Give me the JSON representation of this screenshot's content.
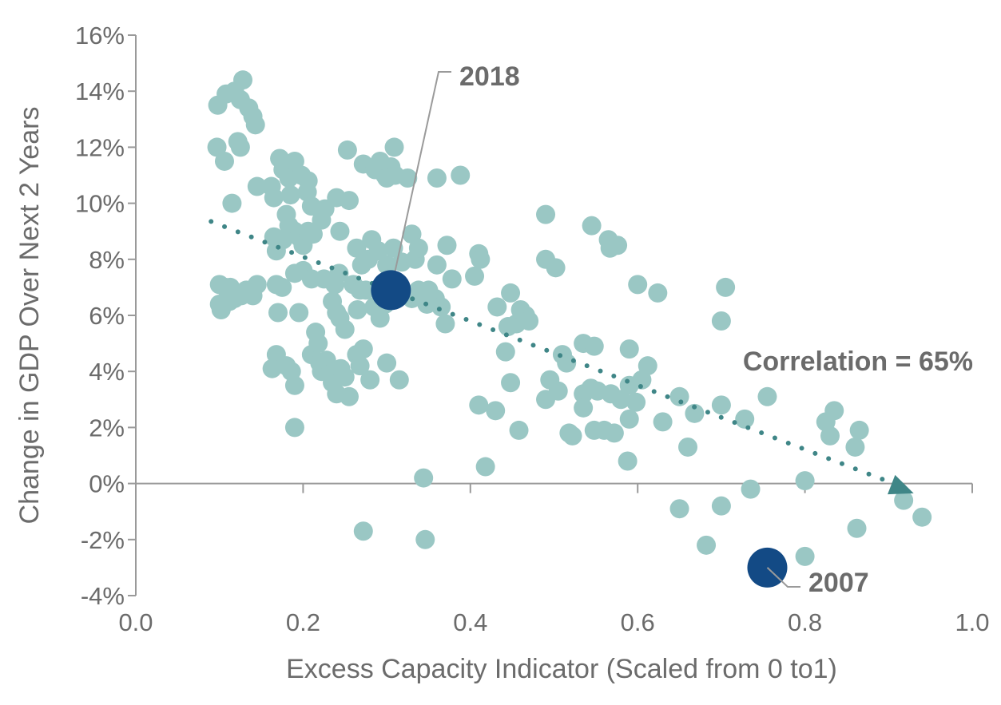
{
  "chart_data": {
    "type": "scatter",
    "xlabel": "Excess Capacity Indicator (Scaled from 0 to1)",
    "ylabel": "Change in GDP Over Next 2 Years",
    "xlim": [
      0,
      1
    ],
    "ylim": [
      -4,
      16
    ],
    "x_ticks": [
      "0.0",
      "0.2",
      "0.4",
      "0.6",
      "0.8",
      "1.0"
    ],
    "y_ticks": [
      "-4%",
      "-2%",
      "0%",
      "2%",
      "4%",
      "6%",
      "8%",
      "10%",
      "12%",
      "14%",
      "16%"
    ],
    "grid": false,
    "colors": {
      "points": "#9ac7c4",
      "highlight": "#134a85",
      "trend": "#3f8687",
      "axis": "#9a9a9a",
      "text": "#6b6b6b"
    },
    "trendline": {
      "x": [
        0.09,
        0.93
      ],
      "y": [
        9.35,
        -0.35
      ],
      "style": "dotted",
      "end_marker": "arrow"
    },
    "annotation": "Correlation = 65%",
    "highlights": [
      {
        "label": "2018",
        "x": 0.305,
        "y": 6.9
      },
      {
        "label": "2007",
        "x": 0.755,
        "y": -3.0
      }
    ],
    "points": [
      [
        0.098,
        13.5
      ],
      [
        0.108,
        13.9
      ],
      [
        0.118,
        14.0
      ],
      [
        0.128,
        14.4
      ],
      [
        0.125,
        13.7
      ],
      [
        0.135,
        13.4
      ],
      [
        0.14,
        13.1
      ],
      [
        0.143,
        12.8
      ],
      [
        0.097,
        12.0
      ],
      [
        0.106,
        11.5
      ],
      [
        0.122,
        12.2
      ],
      [
        0.125,
        12.0
      ],
      [
        0.115,
        10.0
      ],
      [
        0.145,
        10.6
      ],
      [
        0.1,
        7.1
      ],
      [
        0.107,
        7.0
      ],
      [
        0.113,
        7.0
      ],
      [
        0.12,
        6.8
      ],
      [
        0.126,
        6.7
      ],
      [
        0.132,
        6.9
      ],
      [
        0.14,
        6.7
      ],
      [
        0.145,
        7.1
      ],
      [
        0.1,
        6.4
      ],
      [
        0.102,
        6.2
      ],
      [
        0.112,
        6.5
      ],
      [
        0.118,
        6.6
      ],
      [
        0.162,
        10.6
      ],
      [
        0.165,
        10.2
      ],
      [
        0.172,
        11.6
      ],
      [
        0.176,
        11.2
      ],
      [
        0.183,
        10.9
      ],
      [
        0.19,
        11.5
      ],
      [
        0.198,
        11.0
      ],
      [
        0.185,
        10.3
      ],
      [
        0.206,
        10.8
      ],
      [
        0.205,
        10.4
      ],
      [
        0.21,
        9.9
      ],
      [
        0.165,
        8.8
      ],
      [
        0.168,
        8.3
      ],
      [
        0.176,
        8.7
      ],
      [
        0.18,
        9.6
      ],
      [
        0.183,
        9.2
      ],
      [
        0.19,
        9.0
      ],
      [
        0.195,
        8.8
      ],
      [
        0.2,
        8.5
      ],
      [
        0.206,
        9.0
      ],
      [
        0.212,
        8.9
      ],
      [
        0.222,
        9.4
      ],
      [
        0.226,
        9.8
      ],
      [
        0.24,
        10.2
      ],
      [
        0.244,
        9.0
      ],
      [
        0.255,
        10.1
      ],
      [
        0.168,
        7.1
      ],
      [
        0.175,
        7.0
      ],
      [
        0.19,
        7.5
      ],
      [
        0.2,
        7.6
      ],
      [
        0.21,
        7.3
      ],
      [
        0.225,
        7.3
      ],
      [
        0.238,
        7.1
      ],
      [
        0.243,
        7.5
      ],
      [
        0.17,
        6.1
      ],
      [
        0.195,
        6.1
      ],
      [
        0.235,
        6.5
      ],
      [
        0.24,
        6.1
      ],
      [
        0.244,
        5.9
      ],
      [
        0.25,
        5.5
      ],
      [
        0.265,
        6.2
      ],
      [
        0.168,
        4.6
      ],
      [
        0.163,
        4.1
      ],
      [
        0.18,
        4.2
      ],
      [
        0.186,
        4.0
      ],
      [
        0.19,
        3.5
      ],
      [
        0.21,
        4.6
      ],
      [
        0.215,
        5.4
      ],
      [
        0.218,
        5.0
      ],
      [
        0.22,
        4.3
      ],
      [
        0.222,
        4.0
      ],
      [
        0.228,
        4.4
      ],
      [
        0.232,
        3.9
      ],
      [
        0.235,
        3.6
      ],
      [
        0.24,
        3.2
      ],
      [
        0.245,
        4.1
      ],
      [
        0.25,
        3.8
      ],
      [
        0.255,
        3.1
      ],
      [
        0.264,
        4.6
      ],
      [
        0.268,
        4.2
      ],
      [
        0.272,
        4.8
      ],
      [
        0.28,
        3.7
      ],
      [
        0.19,
        2.0
      ],
      [
        0.253,
        11.9
      ],
      [
        0.272,
        11.4
      ],
      [
        0.286,
        11.2
      ],
      [
        0.292,
        11.5
      ],
      [
        0.298,
        11.0
      ],
      [
        0.305,
        11.3
      ],
      [
        0.309,
        12.0
      ],
      [
        0.3,
        10.9
      ],
      [
        0.31,
        11.0
      ],
      [
        0.325,
        10.9
      ],
      [
        0.36,
        10.9
      ],
      [
        0.388,
        11.0
      ],
      [
        0.264,
        8.4
      ],
      [
        0.27,
        7.8
      ],
      [
        0.278,
        8.0
      ],
      [
        0.282,
        8.7
      ],
      [
        0.29,
        8.3
      ],
      [
        0.3,
        7.8
      ],
      [
        0.308,
        8.4
      ],
      [
        0.318,
        7.9
      ],
      [
        0.33,
        8.9
      ],
      [
        0.334,
        8.0
      ],
      [
        0.338,
        8.4
      ],
      [
        0.35,
        6.9
      ],
      [
        0.338,
        6.9
      ],
      [
        0.33,
        6.6
      ],
      [
        0.26,
        7.1
      ],
      [
        0.268,
        6.9
      ],
      [
        0.275,
        6.9
      ],
      [
        0.285,
        6.3
      ],
      [
        0.292,
        5.9
      ],
      [
        0.298,
        6.4
      ],
      [
        0.3,
        4.3
      ],
      [
        0.315,
        3.7
      ],
      [
        0.36,
        7.8
      ],
      [
        0.372,
        8.5
      ],
      [
        0.378,
        7.3
      ],
      [
        0.348,
        6.4
      ],
      [
        0.358,
        6.6
      ],
      [
        0.365,
        6.3
      ],
      [
        0.37,
        5.7
      ],
      [
        0.405,
        7.4
      ],
      [
        0.41,
        8.2
      ],
      [
        0.412,
        8.0
      ],
      [
        0.432,
        6.3
      ],
      [
        0.448,
        6.8
      ],
      [
        0.455,
        5.7
      ],
      [
        0.445,
        5.6
      ],
      [
        0.46,
        6.2
      ],
      [
        0.466,
        6.0
      ],
      [
        0.47,
        5.8
      ],
      [
        0.442,
        4.7
      ],
      [
        0.448,
        3.6
      ],
      [
        0.41,
        2.8
      ],
      [
        0.43,
        2.6
      ],
      [
        0.458,
        1.9
      ],
      [
        0.418,
        0.6
      ],
      [
        0.344,
        0.2
      ],
      [
        0.272,
        -1.7
      ],
      [
        0.346,
        -2.0
      ],
      [
        0.49,
        9.6
      ],
      [
        0.49,
        8.0
      ],
      [
        0.502,
        7.7
      ],
      [
        0.495,
        3.7
      ],
      [
        0.49,
        3.0
      ],
      [
        0.505,
        3.3
      ],
      [
        0.51,
        4.6
      ],
      [
        0.515,
        4.3
      ],
      [
        0.518,
        1.8
      ],
      [
        0.522,
        1.7
      ],
      [
        0.535,
        5.0
      ],
      [
        0.548,
        4.9
      ],
      [
        0.535,
        3.2
      ],
      [
        0.544,
        3.4
      ],
      [
        0.552,
        3.3
      ],
      [
        0.535,
        2.7
      ],
      [
        0.548,
        1.9
      ],
      [
        0.56,
        1.9
      ],
      [
        0.568,
        3.2
      ],
      [
        0.572,
        1.8
      ],
      [
        0.545,
        9.2
      ],
      [
        0.565,
        8.7
      ],
      [
        0.567,
        8.4
      ],
      [
        0.576,
        8.5
      ],
      [
        0.6,
        7.1
      ],
      [
        0.624,
        6.8
      ],
      [
        0.705,
        7.0
      ],
      [
        0.59,
        4.8
      ],
      [
        0.59,
        3.5
      ],
      [
        0.58,
        3.0
      ],
      [
        0.598,
        2.9
      ],
      [
        0.605,
        3.7
      ],
      [
        0.612,
        4.2
      ],
      [
        0.59,
        2.3
      ],
      [
        0.588,
        0.8
      ],
      [
        0.63,
        2.2
      ],
      [
        0.65,
        3.1
      ],
      [
        0.66,
        1.3
      ],
      [
        0.668,
        2.5
      ],
      [
        0.7,
        2.8
      ],
      [
        0.7,
        5.8
      ],
      [
        0.728,
        2.3
      ],
      [
        0.755,
        3.1
      ],
      [
        0.65,
        -0.9
      ],
      [
        0.682,
        -2.2
      ],
      [
        0.7,
        -0.8
      ],
      [
        0.735,
        -0.2
      ],
      [
        0.8,
        0.1
      ],
      [
        0.8,
        -2.6
      ],
      [
        0.825,
        2.2
      ],
      [
        0.83,
        1.7
      ],
      [
        0.835,
        2.6
      ],
      [
        0.86,
        1.3
      ],
      [
        0.865,
        1.9
      ],
      [
        0.862,
        -1.6
      ],
      [
        0.918,
        -0.6
      ],
      [
        0.94,
        -1.2
      ]
    ]
  }
}
